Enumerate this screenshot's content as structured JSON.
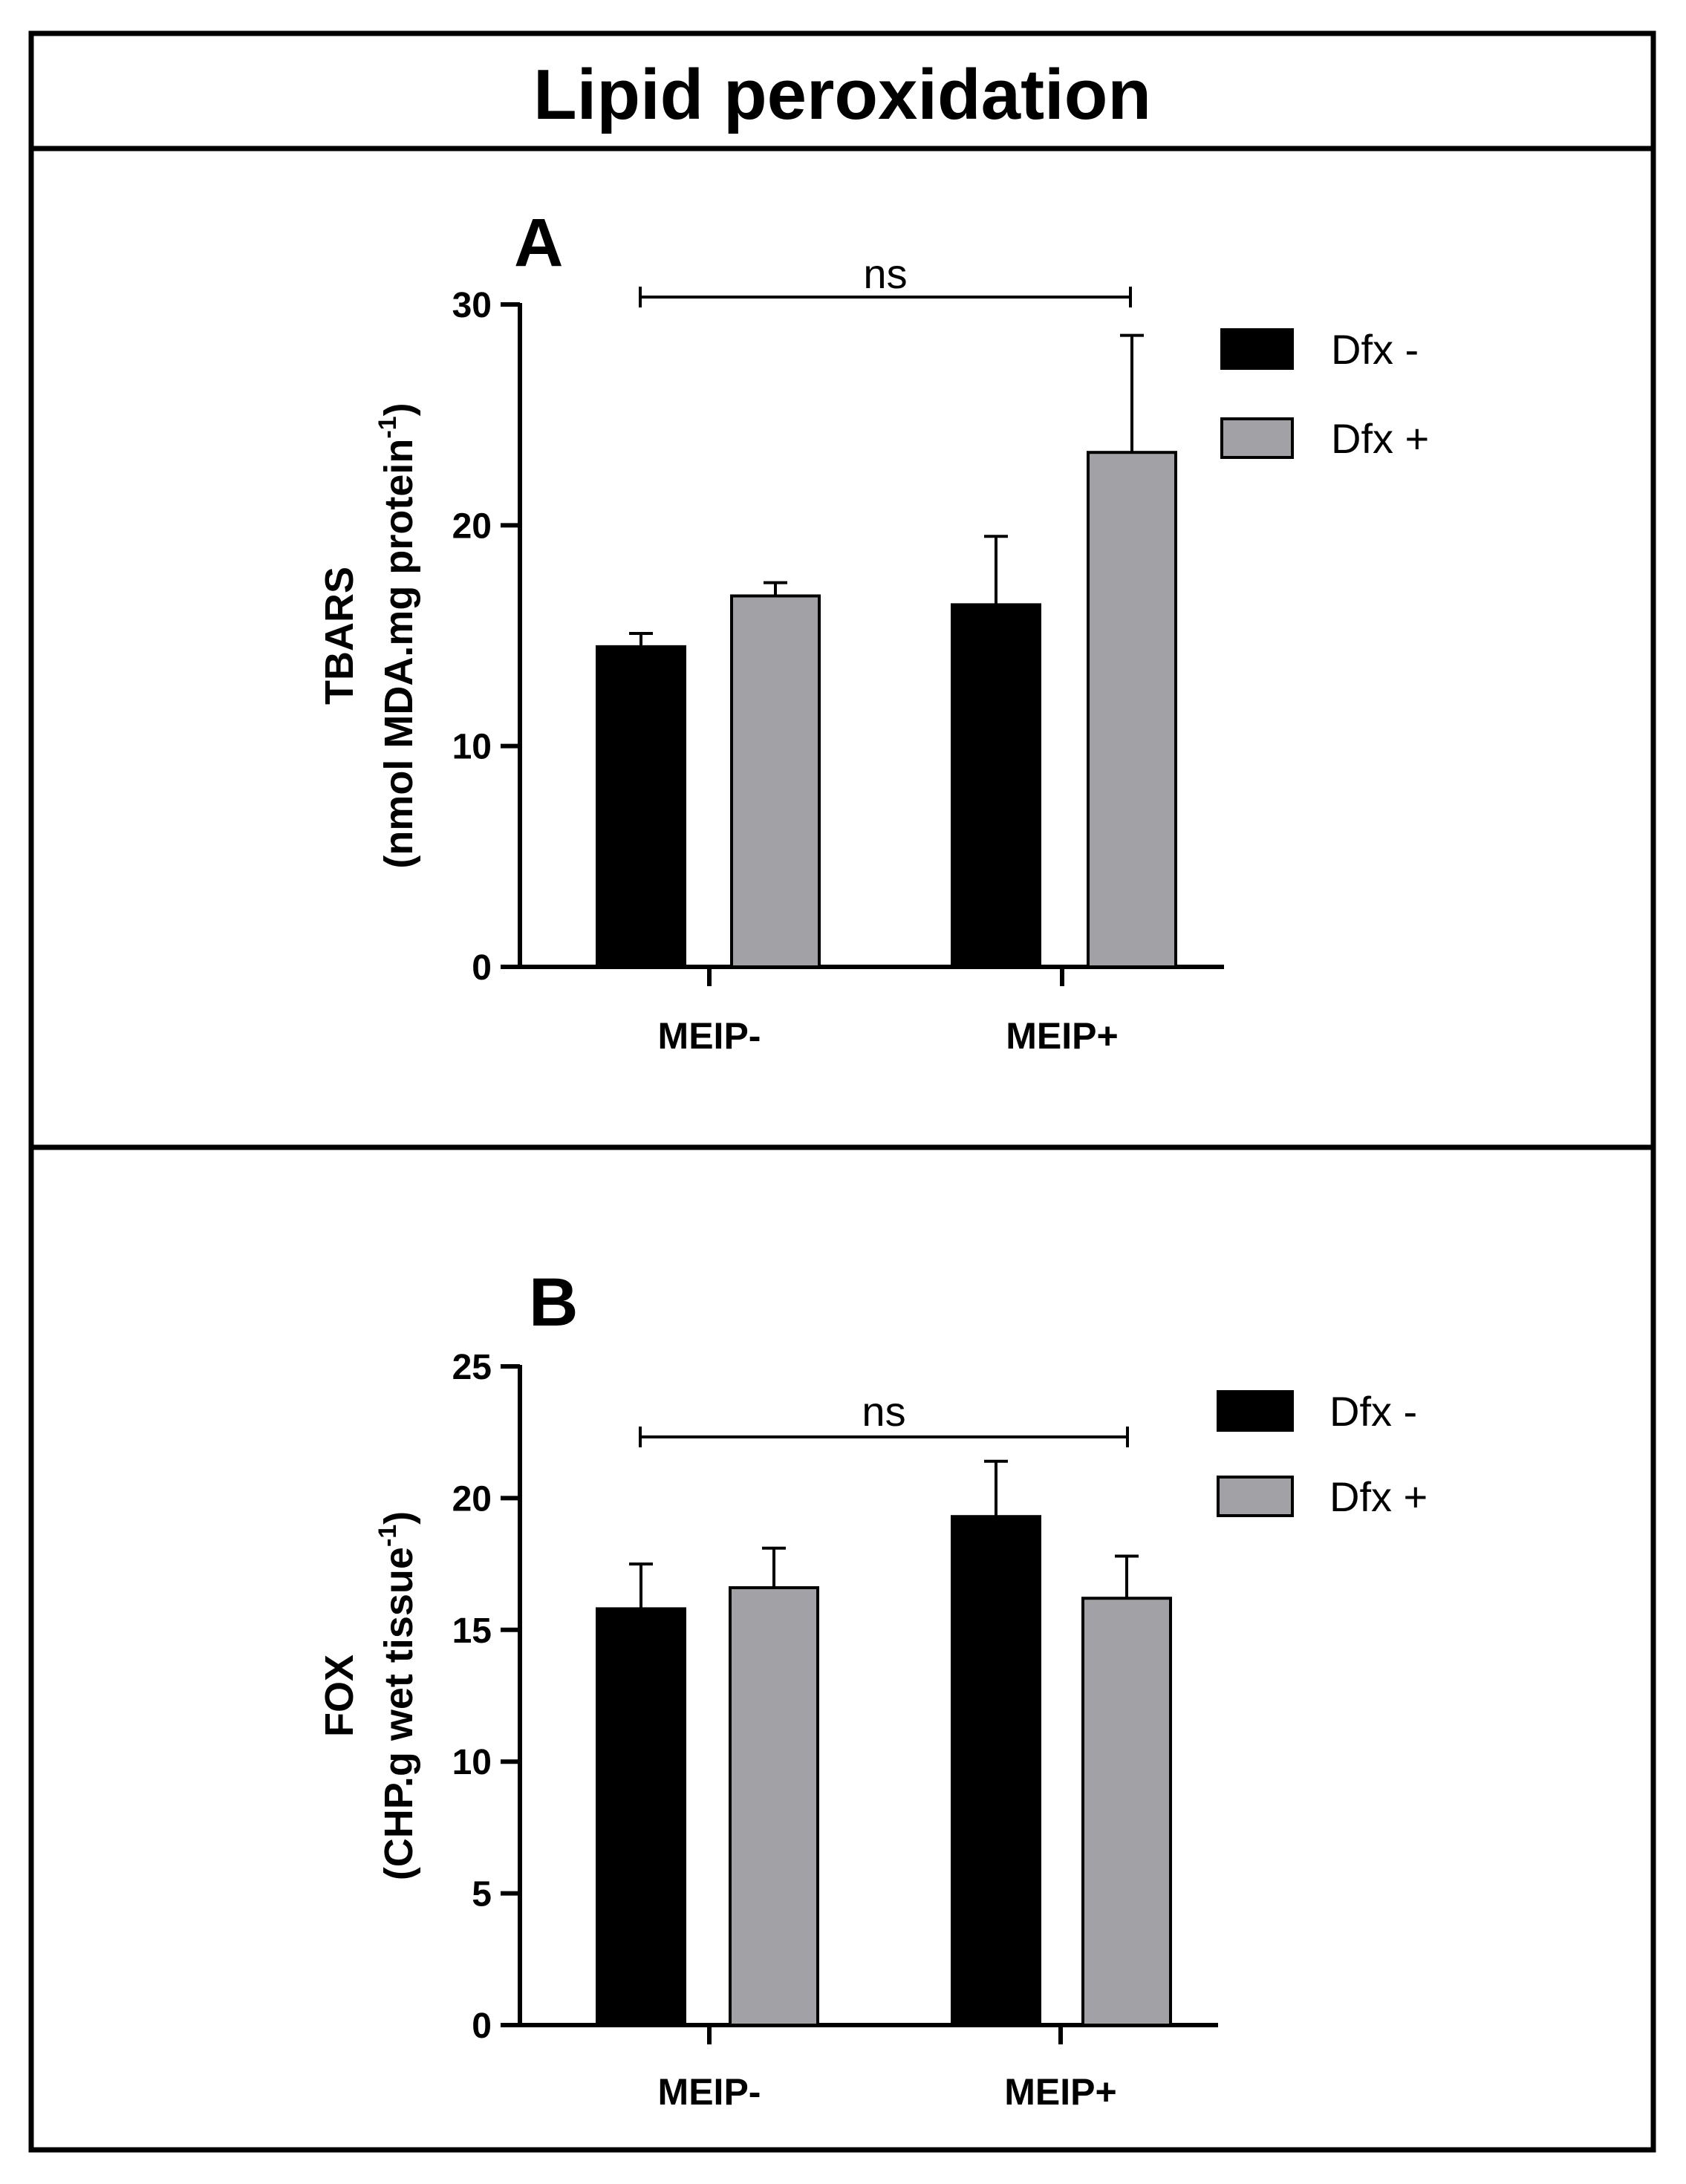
{
  "figure_title": "Lipid peroxidation",
  "colors": {
    "dfx_minus": "#000000",
    "dfx_plus": "#a2a2a6",
    "frame": "#000000"
  },
  "chart_data": [
    {
      "panel": "A",
      "type": "bar",
      "categories": [
        "MEIP-",
        "MEIP+"
      ],
      "series": [
        {
          "name": "Dfx -",
          "values": [
            14.5,
            16.4
          ],
          "errors": [
            0.6,
            3.1
          ]
        },
        {
          "name": "Dfx +",
          "values": [
            16.8,
            23.3
          ],
          "errors": [
            0.6,
            5.3
          ]
        }
      ],
      "ylabel_line1": "TBARS",
      "ylabel_line2_main": "(nmol MDA.mg protein",
      "ylabel_line2_sup": "-1",
      "ylabel_line2_end": ")",
      "ylim": [
        0,
        30
      ],
      "yticks": [
        0,
        10,
        20,
        30
      ],
      "legend": "top-right",
      "significance": {
        "label": "ns",
        "from": "MEIP-",
        "to": "MEIP+"
      }
    },
    {
      "panel": "B",
      "type": "bar",
      "categories": [
        "MEIP-",
        "MEIP+"
      ],
      "series": [
        {
          "name": "Dfx -",
          "values": [
            15.8,
            19.3
          ],
          "errors": [
            1.7,
            2.1
          ]
        },
        {
          "name": "Dfx +",
          "values": [
            16.6,
            16.2
          ],
          "errors": [
            1.5,
            1.6
          ]
        }
      ],
      "ylabel_line1": "FOX",
      "ylabel_line2_main": "(CHP.g wet tissue",
      "ylabel_line2_sup": "-1",
      "ylabel_line2_end": ")",
      "ylim": [
        0,
        25
      ],
      "yticks": [
        0,
        5,
        10,
        15,
        20,
        25
      ],
      "legend": "top-right",
      "significance": {
        "label": "ns",
        "from": "MEIP-",
        "to": "MEIP+"
      }
    }
  ]
}
